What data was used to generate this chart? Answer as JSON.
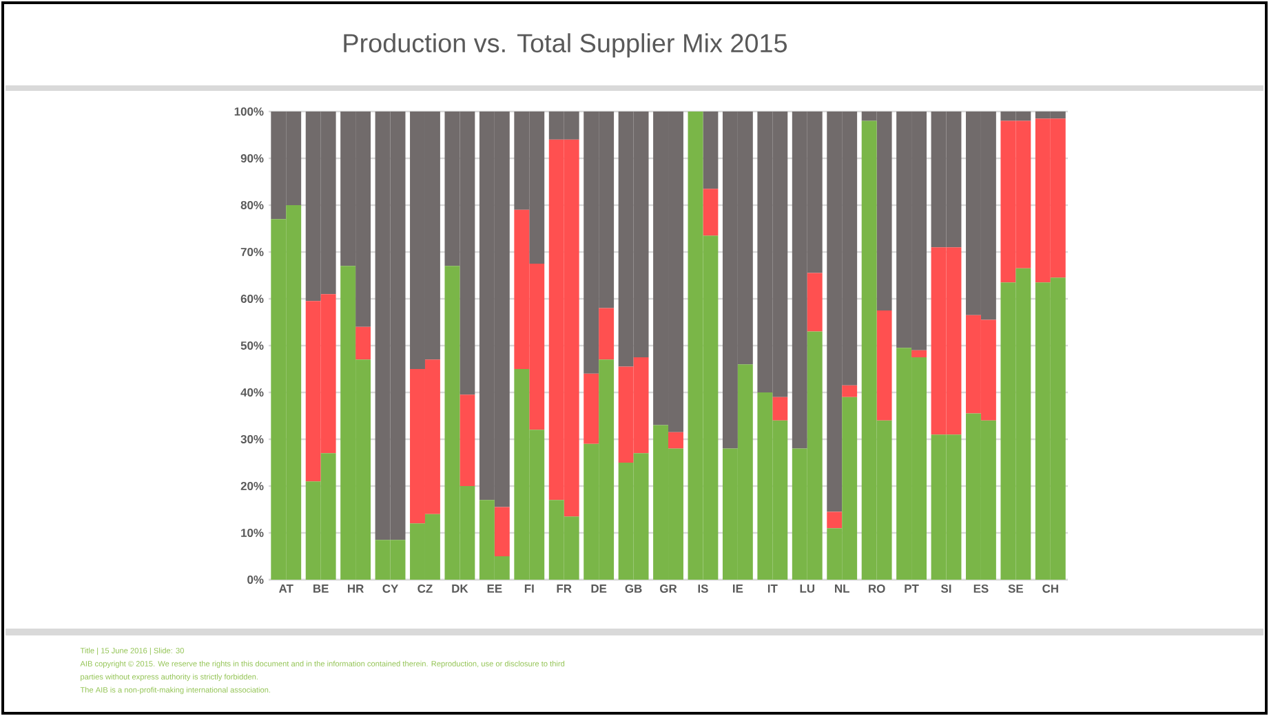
{
  "chart_data": {
    "type": "bar",
    "title": "Production vs. Total Supplier Mix 2015",
    "categories": [
      "AT",
      null,
      "BE",
      null,
      "HR",
      null,
      "CY",
      null,
      "CZ",
      null,
      "DK",
      null,
      "EE",
      null,
      "FI",
      null,
      "FR",
      null,
      "DE",
      null,
      "GB",
      null,
      "GR",
      null,
      "IS",
      null,
      "IE",
      null,
      "IT",
      null,
      "LU",
      null,
      "NL",
      null,
      "RO",
      null,
      "PT",
      null,
      "SI",
      null,
      "ES",
      null,
      "SE",
      null,
      "CH",
      null
    ],
    "stacked": true,
    "series": [
      {
        "color": "#7ab648",
        "values": [
          77,
          80,
          21,
          27,
          67,
          47,
          8.5,
          8.5,
          12,
          14,
          67,
          20,
          17,
          5,
          45,
          32,
          17,
          13.5,
          29,
          47,
          25,
          27,
          33,
          28,
          100,
          73.5,
          28,
          46,
          40,
          34,
          28,
          53,
          11,
          39,
          98,
          34,
          49.5,
          47.5,
          31,
          31,
          35.5,
          34,
          63.5,
          66.5,
          63.5,
          64.5
        ]
      },
      {
        "color": "#ff5050",
        "values": [
          0,
          0,
          38.5,
          34,
          0,
          7,
          0,
          0,
          33,
          33,
          0,
          19.5,
          0,
          10.5,
          34,
          35.5,
          77,
          80.5,
          15,
          11,
          20.5,
          20.5,
          0,
          3.5,
          0,
          10,
          0,
          0,
          0,
          5,
          0,
          12.5,
          3.5,
          2.5,
          0,
          23.5,
          0,
          1.5,
          40,
          40,
          21,
          21.5,
          34.5,
          31.5,
          35,
          34
        ]
      },
      {
        "color": "#716b6b",
        "values": [
          23,
          20,
          40.5,
          39,
          33,
          46,
          91.5,
          91.5,
          55,
          53,
          33,
          60.5,
          83,
          84.5,
          21,
          32.5,
          6,
          6,
          56,
          42,
          54.5,
          52.5,
          67,
          68.5,
          0,
          16.5,
          72,
          54,
          60,
          61,
          72,
          34.5,
          85.5,
          58.5,
          2,
          42.5,
          50.5,
          51,
          29,
          29,
          43.5,
          44.5,
          2,
          2,
          1.5,
          1.5
        ]
      }
    ],
    "ylim": [
      0,
      100
    ],
    "yticks": [
      {
        "value": 0,
        "label": "0%"
      },
      {
        "value": 10,
        "label": "10%"
      },
      {
        "value": 20,
        "label": "20%"
      },
      {
        "value": 30,
        "label": "30%"
      },
      {
        "value": 40,
        "label": "40%"
      },
      {
        "value": 50,
        "label": "50%"
      },
      {
        "value": 60,
        "label": "60%"
      },
      {
        "value": 70,
        "label": "70%"
      },
      {
        "value": 80,
        "label": "80%"
      },
      {
        "value": 90,
        "label": "90%"
      },
      {
        "value": 100,
        "label": "100%"
      }
    ],
    "grid": "y",
    "annotations": [
      "Title | 15 June 2016 | Slide: 30",
      "AIB copyright © 2015. We reserve the rights in this document and in the information contained therein. Reproduction, use or disclosure to third",
      "parties without express authority is strictly forbidden.",
      "The AIB is a non-profit-making international association."
    ]
  }
}
